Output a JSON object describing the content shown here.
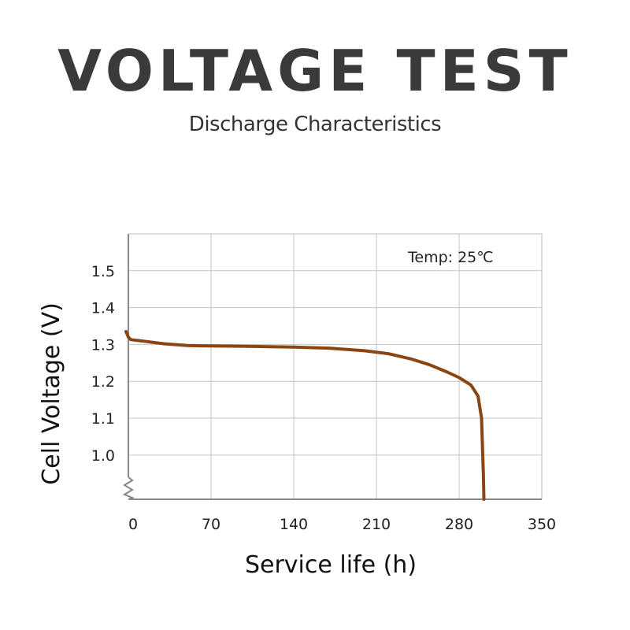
{
  "header": {
    "title": "VOLTAGE TEST",
    "subtitle": "Discharge Characteristics"
  },
  "chart_data": {
    "type": "line",
    "xlabel": "Service life (h)",
    "ylabel": "Cell Voltage (V)",
    "xlim": [
      0,
      350
    ],
    "ylim": [
      0.88,
      1.6
    ],
    "x_ticks": [
      "0",
      "70",
      "140",
      "210",
      "280",
      "350"
    ],
    "y_ticks": [
      "1.0",
      "1.1",
      "1.2",
      "1.3",
      "1.4",
      "1.5"
    ],
    "x_grid": [
      0,
      70,
      140,
      210,
      280,
      350
    ],
    "y_grid": [
      1.0,
      1.1,
      1.2,
      1.3,
      1.4,
      1.5
    ],
    "grid": true,
    "annotation": "Temp: 25℃",
    "color": "#8b4513",
    "series": [
      {
        "x": [
          -2,
          0,
          2,
          10,
          30,
          50,
          70,
          100,
          140,
          170,
          200,
          220,
          240,
          255,
          270,
          280,
          290,
          296,
          299,
          300,
          300.5,
          301
        ],
        "y": [
          1.335,
          1.32,
          1.313,
          1.31,
          1.302,
          1.297,
          1.296,
          1.295,
          1.293,
          1.29,
          1.283,
          1.275,
          1.26,
          1.245,
          1.225,
          1.21,
          1.19,
          1.16,
          1.1,
          1.0,
          0.95,
          0.88
        ]
      }
    ]
  }
}
